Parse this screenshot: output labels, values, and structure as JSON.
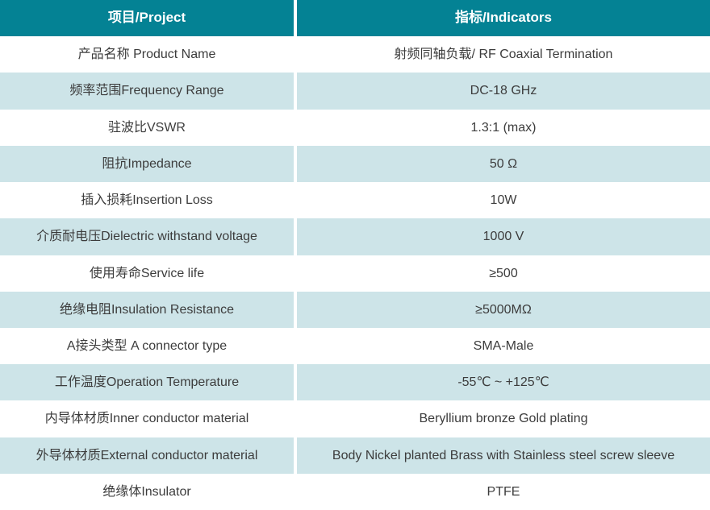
{
  "table": {
    "header": {
      "project_label": "项目/Project",
      "indicators_label": "指标/Indicators"
    },
    "rows": [
      {
        "project": "产品名称 Product Name",
        "indicator": "射频同轴负载/ RF Coaxial Termination"
      },
      {
        "project": "频率范围Frequency Range",
        "indicator": "DC-18 GHz"
      },
      {
        "project": "驻波比VSWR",
        "indicator": "1.3:1 (max)"
      },
      {
        "project": "阻抗Impedance",
        "indicator": "50 Ω"
      },
      {
        "project": "插入损耗Insertion Loss",
        "indicator": "10W"
      },
      {
        "project": "介质耐电压Dielectric withstand voltage",
        "indicator": "1000 V"
      },
      {
        "project": "使用寿命Service life",
        "indicator": "≥500"
      },
      {
        "project": "绝缘电阻Insulation Resistance",
        "indicator": "≥5000MΩ"
      },
      {
        "project": "A接头类型 A connector type",
        "indicator": "SMA-Male"
      },
      {
        "project": "工作温度Operation Temperature",
        "indicator": "-55℃ ~ +125℃"
      },
      {
        "project": "内导体材质Inner conductor material",
        "indicator": "Beryllium bronze Gold plating"
      },
      {
        "project": "外导体材质External conductor material",
        "indicator": "Body Nickel planted Brass with Stainless steel screw sleeve"
      },
      {
        "project": "绝缘体Insulator",
        "indicator": "PTFE"
      }
    ],
    "colors": {
      "header_bg": "#048294",
      "header_text": "#ffffff",
      "row_tint_bg": "#cde4e8",
      "row_plain_bg": "#ffffff",
      "body_text": "#3c3c3c",
      "divider": "#ffffff"
    }
  }
}
